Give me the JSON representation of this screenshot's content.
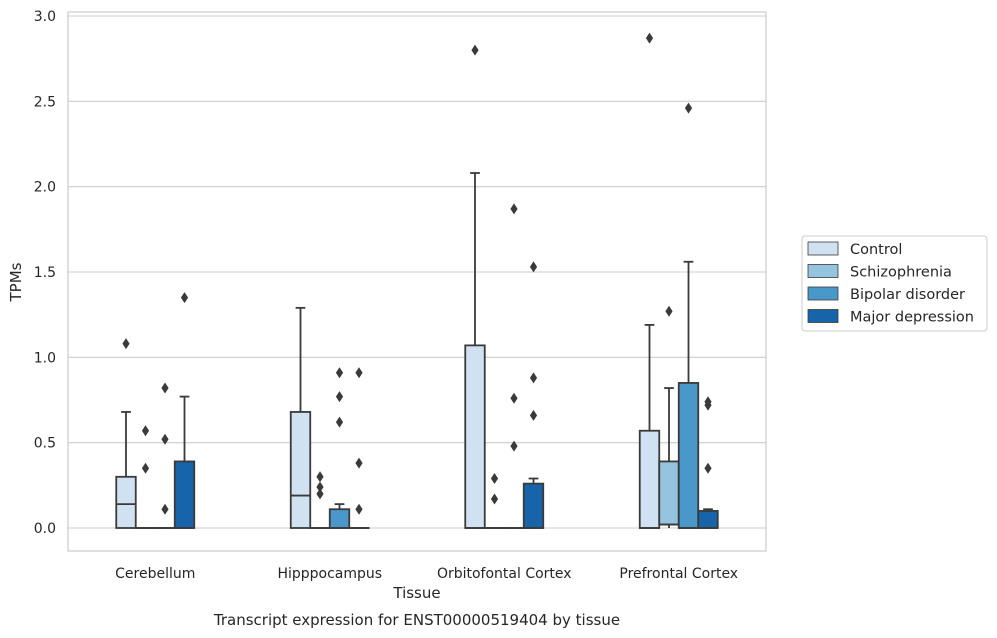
{
  "chart_data": {
    "type": "box",
    "xlabel": "Tissue",
    "ylabel": "TPMs",
    "caption": "Transcript expression for ENST00000519404 by tissue",
    "categories": [
      "Cerebellum",
      "Hipppocampus",
      "Orbitofontal Cortex",
      "Prefrontal Cortex"
    ],
    "ylim": [
      -0.14,
      3.02
    ],
    "yticks": [
      0.0,
      0.5,
      1.0,
      1.5,
      2.0,
      2.5,
      3.0
    ],
    "ytick_labels": [
      "0.0",
      "0.5",
      "1.0",
      "1.5",
      "2.0",
      "2.5",
      "3.0"
    ],
    "grid": "horizontal",
    "legend_position": "right",
    "series": [
      {
        "name": "Control",
        "color": "#d0e1f2",
        "boxes": [
          {
            "q1": 0.0,
            "median": 0.14,
            "q3": 0.3,
            "whisker_low": 0.0,
            "whisker_high": 0.68,
            "outliers": [
              1.08
            ]
          },
          {
            "q1": 0.0,
            "median": 0.19,
            "q3": 0.68,
            "whisker_low": 0.0,
            "whisker_high": 1.29,
            "outliers": []
          },
          {
            "q1": 0.0,
            "median": 0.0,
            "q3": 1.07,
            "whisker_low": 0.0,
            "whisker_high": 2.08,
            "outliers": [
              2.8
            ]
          },
          {
            "q1": 0.0,
            "median": 0.0,
            "q3": 0.57,
            "whisker_low": 0.0,
            "whisker_high": 1.19,
            "outliers": [
              2.87
            ]
          }
        ]
      },
      {
        "name": "Schizophrenia",
        "color": "#94c4df",
        "boxes": [
          {
            "q1": 0.0,
            "median": 0.0,
            "q3": 0.0,
            "whisker_low": 0.0,
            "whisker_high": 0.0,
            "outliers": [
              0.57,
              0.35
            ]
          },
          {
            "q1": 0.0,
            "median": 0.0,
            "q3": 0.0,
            "whisker_low": 0.0,
            "whisker_high": 0.0,
            "outliers": [
              0.3,
              0.24,
              0.2
            ]
          },
          {
            "q1": 0.0,
            "median": 0.0,
            "q3": 0.0,
            "whisker_low": 0.0,
            "whisker_high": 0.0,
            "outliers": [
              0.29,
              0.17
            ]
          },
          {
            "q1": 0.02,
            "median": 0.02,
            "q3": 0.39,
            "whisker_low": 0.0,
            "whisker_high": 0.82,
            "outliers": [
              1.27
            ]
          }
        ]
      },
      {
        "name": "Bipolar disorder",
        "color": "#4a98c9",
        "boxes": [
          {
            "q1": 0.0,
            "median": 0.0,
            "q3": 0.0,
            "whisker_low": 0.0,
            "whisker_high": 0.0,
            "outliers": [
              0.82,
              0.52,
              0.11
            ]
          },
          {
            "q1": 0.0,
            "median": 0.0,
            "q3": 0.11,
            "whisker_low": 0.0,
            "whisker_high": 0.14,
            "outliers": [
              0.91,
              0.77,
              0.62
            ]
          },
          {
            "q1": 0.0,
            "median": 0.0,
            "q3": 0.0,
            "whisker_low": 0.0,
            "whisker_high": 0.0,
            "outliers": [
              1.87,
              0.76,
              0.48
            ]
          },
          {
            "q1": 0.0,
            "median": 0.0,
            "q3": 0.85,
            "whisker_low": 0.0,
            "whisker_high": 1.56,
            "outliers": [
              2.46
            ]
          }
        ]
      },
      {
        "name": "Major depression",
        "color": "#1764ab",
        "boxes": [
          {
            "q1": 0.0,
            "median": 0.0,
            "q3": 0.39,
            "whisker_low": 0.0,
            "whisker_high": 0.77,
            "outliers": [
              1.35
            ]
          },
          {
            "q1": 0.0,
            "median": 0.0,
            "q3": 0.0,
            "whisker_low": 0.0,
            "whisker_high": 0.0,
            "outliers": [
              0.91,
              0.38,
              0.11
            ]
          },
          {
            "q1": 0.0,
            "median": 0.0,
            "q3": 0.26,
            "whisker_low": 0.0,
            "whisker_high": 0.29,
            "outliers": [
              1.53,
              0.88,
              0.66
            ]
          },
          {
            "q1": 0.0,
            "median": 0.0,
            "q3": 0.1,
            "whisker_low": 0.0,
            "whisker_high": 0.11,
            "outliers": [
              0.74,
              0.72,
              0.35
            ]
          }
        ]
      }
    ]
  }
}
